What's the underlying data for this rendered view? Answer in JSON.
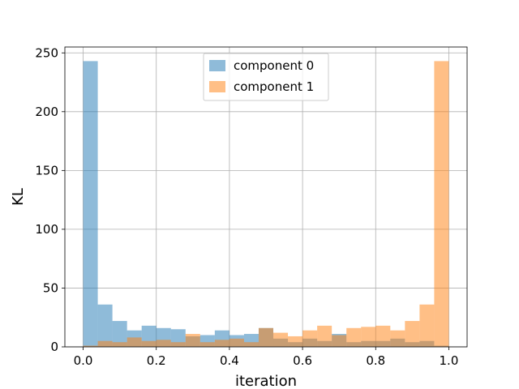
{
  "chart_data": {
    "type": "bar",
    "title": "",
    "xlabel": "iteration",
    "ylabel": "KL",
    "xlim": [
      -0.05,
      1.05
    ],
    "ylim": [
      0,
      255
    ],
    "xticks": [
      0.0,
      0.2,
      0.4,
      0.6,
      0.8,
      1.0
    ],
    "xtick_labels": [
      "0.0",
      "0.2",
      "0.4",
      "0.6",
      "0.8",
      "1.0"
    ],
    "yticks": [
      0,
      50,
      100,
      150,
      200,
      250
    ],
    "ytick_labels": [
      "0",
      "50",
      "100",
      "150",
      "200",
      "250"
    ],
    "grid": true,
    "legend_position": "top-center",
    "bin_edges": [
      0.0,
      0.04,
      0.08,
      0.12,
      0.16,
      0.2,
      0.24,
      0.28,
      0.32,
      0.36,
      0.4,
      0.44,
      0.48,
      0.52,
      0.56,
      0.6,
      0.64,
      0.68,
      0.72,
      0.76,
      0.8,
      0.84,
      0.88,
      0.92,
      0.96,
      1.0
    ],
    "series": [
      {
        "name": "component 0",
        "color": "#1f77b4",
        "alpha": 0.5,
        "values": [
          243,
          36,
          22,
          14,
          18,
          16,
          15,
          9,
          10,
          14,
          10,
          11,
          16,
          7,
          4,
          7,
          5,
          11,
          4,
          5,
          5,
          7,
          4,
          5,
          1
        ]
      },
      {
        "name": "component 1",
        "color": "#ff7f0e",
        "alpha": 0.5,
        "values": [
          1,
          5,
          4,
          8,
          5,
          6,
          4,
          11,
          4,
          6,
          7,
          4,
          16,
          12,
          9,
          14,
          18,
          10,
          16,
          17,
          18,
          14,
          22,
          36,
          243
        ]
      }
    ]
  }
}
